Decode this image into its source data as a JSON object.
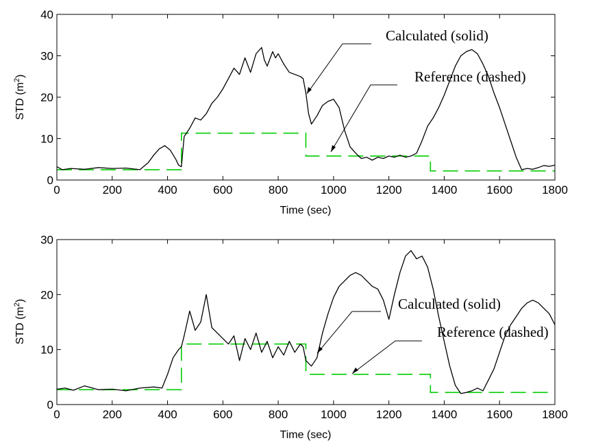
{
  "chart_data": [
    {
      "type": "line",
      "xlabel": "Time (sec)",
      "ylabel": "STD (m",
      "ylabel_sup": "2",
      "ylabel_close": ")",
      "xlim": [
        0,
        1800
      ],
      "ylim": [
        0,
        40
      ],
      "xticks": [
        0,
        200,
        400,
        600,
        800,
        1000,
        1200,
        1400,
        1600,
        1800
      ],
      "yticks": [
        0,
        10,
        20,
        30,
        40
      ],
      "annotations": [
        {
          "text": "Calculated (solid)"
        },
        {
          "text": "Reference (dashed)"
        }
      ],
      "series": [
        {
          "style": "solid",
          "color": "#000000",
          "x": [
            0,
            20,
            50,
            100,
            150,
            200,
            250,
            300,
            330,
            350,
            370,
            390,
            410,
            430,
            440,
            450,
            460,
            480,
            500,
            520,
            540,
            560,
            580,
            600,
            620,
            640,
            660,
            680,
            700,
            720,
            740,
            750,
            760,
            780,
            790,
            800,
            820,
            840,
            860,
            880,
            890,
            900,
            910,
            920,
            940,
            960,
            980,
            1000,
            1020,
            1040,
            1060,
            1080,
            1100,
            1120,
            1140,
            1160,
            1180,
            1200,
            1220,
            1240,
            1260,
            1280,
            1300,
            1320,
            1340,
            1360,
            1380,
            1400,
            1420,
            1440,
            1460,
            1480,
            1500,
            1520,
            1540,
            1560,
            1580,
            1600,
            1620,
            1640,
            1660,
            1680,
            1700,
            1720,
            1740,
            1760,
            1780,
            1800
          ],
          "y": [
            3.2,
            2.5,
            2.8,
            2.6,
            3.0,
            2.8,
            2.9,
            2.5,
            4.2,
            6.0,
            7.5,
            8.3,
            7.2,
            5.0,
            3.6,
            3.2,
            10.5,
            12.5,
            15.0,
            14.5,
            16.0,
            18.5,
            20.0,
            22.0,
            24.5,
            27.0,
            25.5,
            29.5,
            26.0,
            30.5,
            32.0,
            29.0,
            27.5,
            31.0,
            29.5,
            30.5,
            28.0,
            26.0,
            25.5,
            25.0,
            24.5,
            21.0,
            16.0,
            13.5,
            15.5,
            18.0,
            19.0,
            19.5,
            17.5,
            12.0,
            8.0,
            6.5,
            5.2,
            5.5,
            4.8,
            5.5,
            5.2,
            5.8,
            5.5,
            6.0,
            5.5,
            5.8,
            6.5,
            9.5,
            13.0,
            15.0,
            17.5,
            20.5,
            24.0,
            27.5,
            30.0,
            31.0,
            31.5,
            30.5,
            28.0,
            25.0,
            21.0,
            17.5,
            13.5,
            9.5,
            5.5,
            2.5,
            2.8,
            2.6,
            3.0,
            3.5,
            3.3,
            3.6
          ]
        },
        {
          "style": "dashed",
          "color": "#00cc00",
          "x": [
            0,
            450,
            450,
            900,
            900,
            1350,
            1350,
            1800
          ],
          "y": [
            2.5,
            2.5,
            11.3,
            11.3,
            5.8,
            5.8,
            2.2,
            2.2
          ]
        }
      ]
    },
    {
      "type": "line",
      "xlabel": "Time (sec)",
      "ylabel": "STD (m",
      "ylabel_sup": "2",
      "ylabel_close": ")",
      "xlim": [
        0,
        1800
      ],
      "ylim": [
        0,
        30
      ],
      "xticks": [
        0,
        200,
        400,
        600,
        800,
        1000,
        1200,
        1400,
        1600,
        1800
      ],
      "yticks": [
        0,
        10,
        20,
        30
      ],
      "annotations": [
        {
          "text": "Calculated (solid)"
        },
        {
          "text": "Reference (dashed)"
        }
      ],
      "series": [
        {
          "style": "solid",
          "color": "#000000",
          "x": [
            0,
            30,
            60,
            100,
            150,
            200,
            250,
            300,
            350,
            380,
            400,
            420,
            440,
            450,
            460,
            480,
            500,
            520,
            540,
            560,
            580,
            600,
            620,
            640,
            660,
            680,
            700,
            720,
            740,
            760,
            780,
            800,
            820,
            840,
            860,
            880,
            890,
            900,
            910,
            920,
            940,
            960,
            980,
            1000,
            1020,
            1040,
            1060,
            1080,
            1100,
            1120,
            1140,
            1160,
            1180,
            1200,
            1220,
            1240,
            1260,
            1280,
            1300,
            1320,
            1340,
            1360,
            1380,
            1400,
            1420,
            1440,
            1460,
            1480,
            1500,
            1520,
            1540,
            1560,
            1580,
            1600,
            1620,
            1640,
            1660,
            1680,
            1700,
            1720,
            1740,
            1760,
            1780,
            1800
          ],
          "y": [
            2.8,
            3.0,
            2.6,
            3.4,
            2.7,
            2.8,
            2.5,
            3.0,
            3.2,
            3.0,
            5.5,
            8.5,
            10.0,
            10.5,
            12.5,
            17.0,
            13.5,
            15.0,
            20.0,
            14.0,
            13.0,
            12.0,
            11.0,
            12.5,
            8.0,
            12.0,
            10.0,
            13.0,
            9.5,
            11.5,
            8.5,
            10.5,
            9.0,
            11.5,
            9.5,
            11.0,
            10.5,
            8.0,
            7.5,
            7.0,
            8.5,
            13.0,
            16.5,
            19.5,
            21.5,
            22.5,
            23.5,
            24.0,
            23.5,
            22.5,
            21.5,
            21.0,
            19.0,
            15.5,
            20.0,
            24.0,
            27.0,
            28.0,
            26.5,
            27.0,
            25.0,
            21.0,
            16.0,
            11.5,
            7.0,
            3.5,
            2.0,
            2.2,
            2.5,
            3.0,
            2.5,
            4.5,
            6.5,
            9.5,
            12.5,
            14.5,
            16.0,
            17.5,
            18.5,
            19.0,
            18.5,
            17.5,
            16.5,
            14.5
          ]
        },
        {
          "style": "dashed",
          "color": "#00cc00",
          "x": [
            0,
            450,
            450,
            900,
            900,
            1350,
            1350,
            1800
          ],
          "y": [
            2.7,
            2.7,
            11.0,
            11.0,
            5.5,
            5.5,
            2.2,
            2.2
          ]
        }
      ]
    }
  ]
}
